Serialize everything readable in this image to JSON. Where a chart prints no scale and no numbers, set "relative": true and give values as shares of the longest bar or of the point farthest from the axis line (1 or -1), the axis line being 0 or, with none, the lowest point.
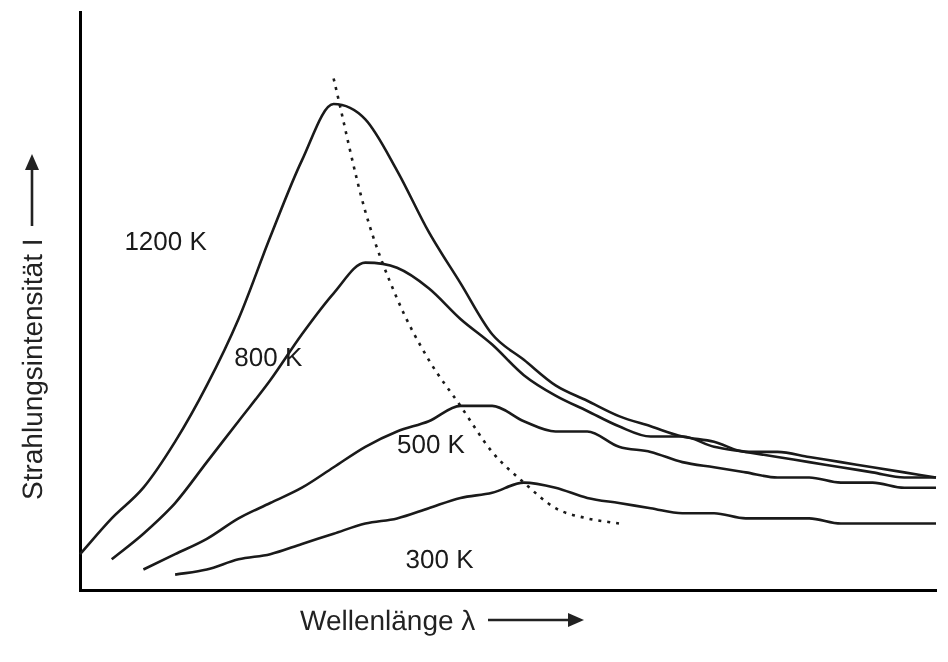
{
  "chart_data": {
    "type": "line",
    "relative": true,
    "xlabel": "Wellenlänge λ",
    "ylabel": "Strahlungsintensität I",
    "marker": "none",
    "categories": [
      null,
      null,
      null,
      null,
      null,
      null,
      null,
      null,
      null,
      null,
      null,
      null,
      null,
      null,
      null,
      null,
      null,
      null,
      null,
      null,
      null,
      null,
      null,
      null,
      null,
      null,
      null,
      null
    ],
    "series": [
      {
        "name": "1200 K",
        "color": "#1a1a1a",
        "line_style": "solid",
        "values": [
          0.07,
          0.14,
          0.2,
          0.29,
          0.4,
          0.53,
          0.69,
          0.84,
          0.95,
          0.92,
          0.82,
          0.7,
          0.6,
          0.5,
          0.45,
          0.4,
          0.37,
          0.34,
          0.32,
          0.3,
          0.29,
          0.27,
          0.27,
          0.26,
          0.25,
          0.24,
          0.23,
          0.22
        ]
      },
      {
        "name": "800 K",
        "color": "#1a1a1a",
        "line_style": "solid",
        "values": [
          null,
          0.06,
          0.11,
          0.17,
          0.25,
          0.33,
          0.41,
          0.5,
          0.58,
          0.64,
          0.63,
          0.59,
          0.53,
          0.48,
          0.42,
          0.38,
          0.35,
          0.32,
          0.3,
          0.3,
          0.28,
          0.27,
          0.26,
          0.25,
          0.24,
          0.23,
          0.22,
          0.22
        ]
      },
      {
        "name": "500 K",
        "color": "#1a1a1a",
        "line_style": "solid",
        "values": [
          null,
          null,
          0.04,
          0.07,
          0.1,
          0.14,
          0.17,
          0.2,
          0.24,
          0.28,
          0.31,
          0.33,
          0.36,
          0.36,
          0.33,
          0.31,
          0.31,
          0.28,
          0.27,
          0.25,
          0.24,
          0.23,
          0.22,
          0.22,
          0.21,
          0.21,
          0.2,
          0.2
        ]
      },
      {
        "name": "300 K",
        "color": "#1a1a1a",
        "line_style": "solid",
        "values": [
          null,
          null,
          null,
          0.03,
          0.04,
          0.06,
          0.07,
          0.09,
          0.11,
          0.13,
          0.14,
          0.16,
          0.18,
          0.19,
          0.21,
          0.2,
          0.18,
          0.17,
          0.16,
          0.15,
          0.15,
          0.14,
          0.14,
          0.14,
          0.13,
          0.13,
          0.13,
          0.13
        ]
      },
      {
        "color": "#1a1a1a",
        "line_style": "dotted",
        "values": [
          null,
          null,
          null,
          null,
          null,
          null,
          null,
          null,
          1,
          0.74,
          0.57,
          0.45,
          0.36,
          0.27,
          0.21,
          0.16,
          0.14,
          0.13,
          null,
          null,
          null,
          null,
          null,
          null,
          null,
          null,
          null,
          null
        ]
      }
    ]
  }
}
